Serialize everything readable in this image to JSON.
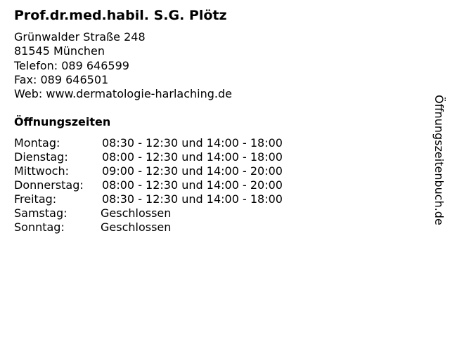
{
  "title": "Prof.dr.med.habil. S.G. Plötz",
  "address": {
    "street": "Grünwalder Straße 248",
    "city": "81545 München",
    "phone": "Telefon: 089 646599",
    "fax": "Fax: 089 646501",
    "web": "Web: www.dermatologie-harlaching.de"
  },
  "hours_title": "Öffnungszeiten",
  "hours": [
    {
      "day": "Montag:",
      "time": "08:30 - 12:30 und 14:00 - 18:00"
    },
    {
      "day": "Dienstag:",
      "time": "08:00 - 12:30 und 14:00 - 18:00"
    },
    {
      "day": "Mittwoch:",
      "time": "09:00 - 12:30 und 14:00 - 20:00"
    },
    {
      "day": "Donnerstag:",
      "time": "08:00 - 12:30 und 14:00 - 20:00"
    },
    {
      "day": "Freitag:",
      "time": "08:30 - 12:30 und 14:00 - 18:00"
    },
    {
      "day": "Samstag:",
      "time": "Geschlossen"
    },
    {
      "day": "Sonntag:",
      "time": "Geschlossen"
    }
  ],
  "side_label": "Öffnungszeitenbuch.de"
}
